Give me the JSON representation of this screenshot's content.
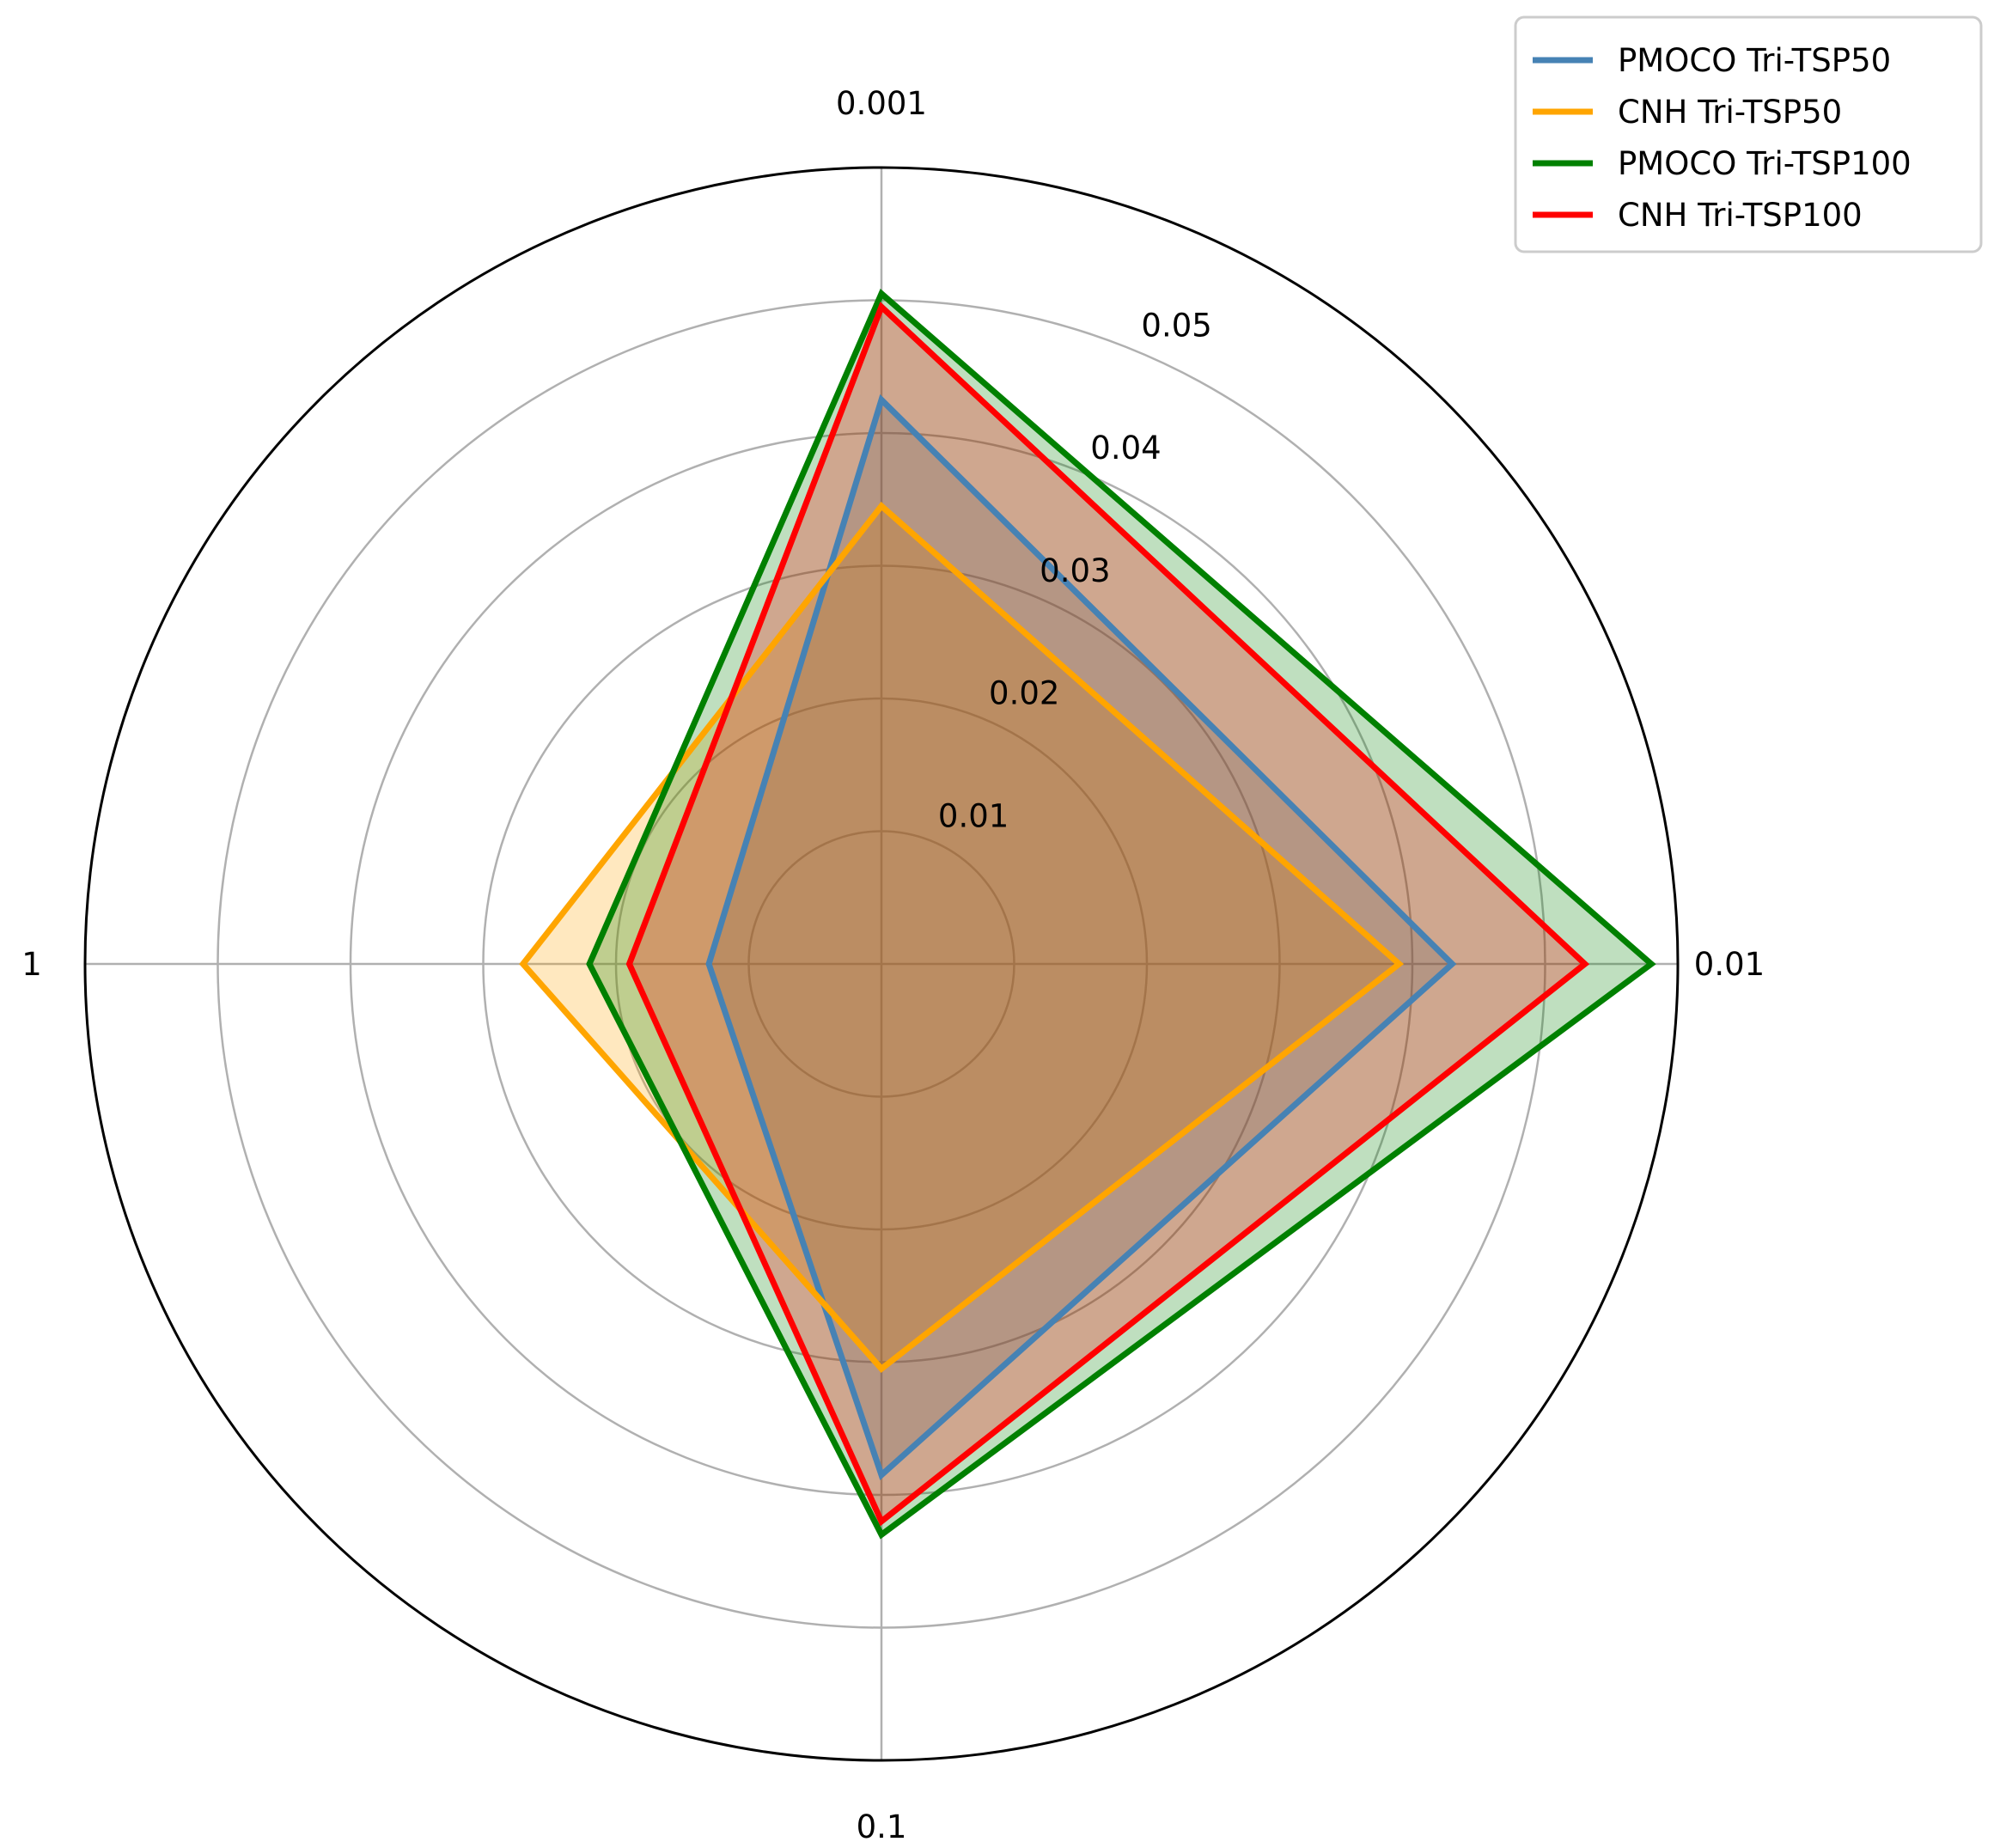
{
  "chart_data": {
    "type": "radar",
    "categories": [
      "0.001",
      "0.01",
      "0.1",
      "1"
    ],
    "radial_ticks": [
      0.01,
      0.02,
      0.03,
      0.04,
      0.05
    ],
    "radial_tick_labels": [
      "0.01",
      "0.02",
      "0.03",
      "0.04",
      "0.05"
    ],
    "rlim": [
      0,
      0.06
    ],
    "grid": true,
    "legend_position": "upper-right",
    "title": "",
    "series": [
      {
        "name": "PMOCO Tri-TSP50",
        "color": "#4682b4",
        "values": [
          0.0425,
          0.043,
          0.0385,
          0.013
        ]
      },
      {
        "name": "CNH Tri-TSP50",
        "color": "#ffa500",
        "values": [
          0.0345,
          0.039,
          0.0305,
          0.027
        ]
      },
      {
        "name": "PMOCO Tri-TSP100",
        "color": "#008000",
        "values": [
          0.0505,
          0.058,
          0.043,
          0.022
        ]
      },
      {
        "name": "CNH Tri-TSP100",
        "color": "#ff0000",
        "values": [
          0.0495,
          0.053,
          0.042,
          0.019
        ]
      }
    ]
  }
}
